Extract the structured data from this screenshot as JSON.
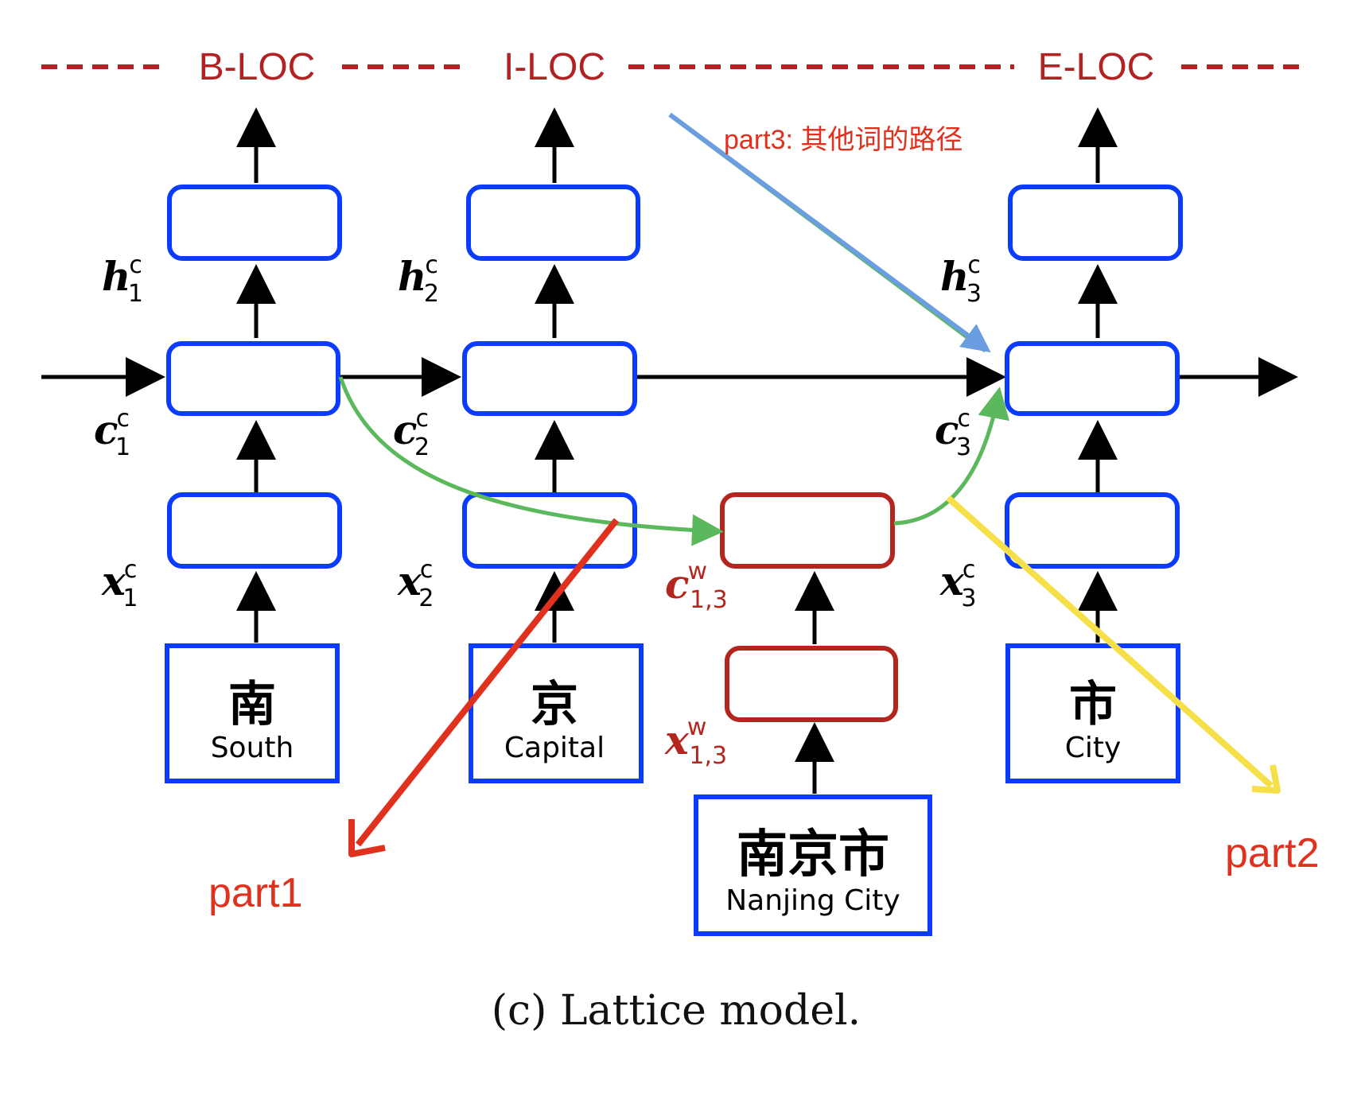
{
  "labels": {
    "b_loc": "B-LOC",
    "i_loc": "I-LOC",
    "e_loc": "E-LOC",
    "h": "h",
    "c": "c",
    "x": "x",
    "sup_c": "c",
    "sup_w": "w",
    "sub_1": "1",
    "sub_2": "2",
    "sub_3": "3",
    "sub_13": "1,3"
  },
  "tokens": {
    "south_zh": "南",
    "south_en": "South",
    "capital_zh": "京",
    "capital_en": "Capital",
    "city_zh": "市",
    "city_en": "City",
    "nanjing_zh": "南京市",
    "nanjing_en": "Nanjing City"
  },
  "annotations": {
    "part1": "part1",
    "part2": "part2",
    "part3": "part3: 其他词的路径"
  },
  "caption": "(c)  Lattice model.",
  "colors": {
    "cell_blue": "#0b3bff",
    "word_red": "#b3261e",
    "tag_red": "#b22222",
    "green": "#5cb85c",
    "blue_arrow": "#6a9ee0",
    "red_arrow": "#e0301e",
    "yellow_arrow": "#f5e04a"
  }
}
